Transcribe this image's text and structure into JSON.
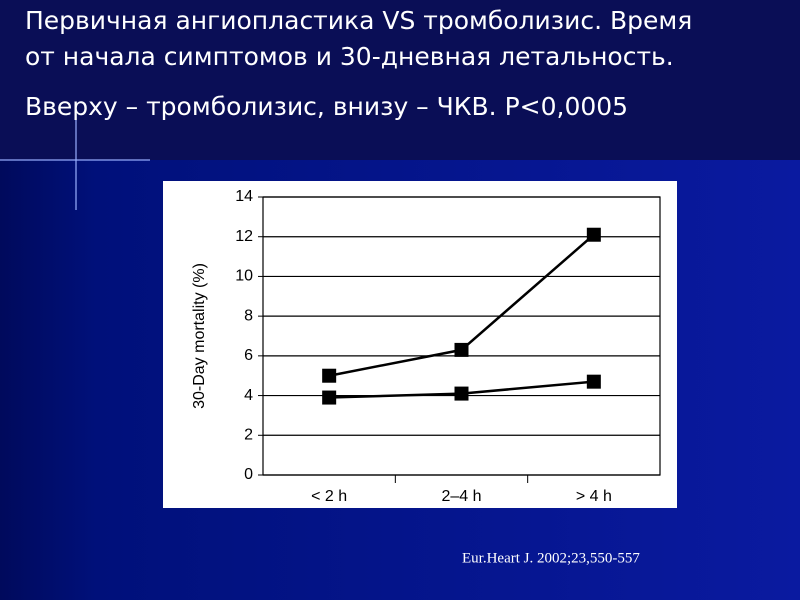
{
  "slide": {
    "heading": [
      "Первичная ангиопластика VS тромболизис. Время",
      "от начала симптомов и 30-дневная летальность.",
      "Вверху – тромболизис, внизу – ЧКВ. Р<0,0005"
    ],
    "source": "Eur.Heart J. 2002;23,550-557"
  },
  "chart_data": {
    "type": "line",
    "y_label": "30-Day mortality (%)",
    "categories": [
      "< 2 h",
      "2–4 h",
      "> 4 h"
    ],
    "series": [
      {
        "color": "#000000",
        "values": [
          5.0,
          6.3,
          12.1
        ]
      },
      {
        "color": "#000000",
        "values": [
          3.9,
          4.1,
          4.7
        ]
      }
    ],
    "ylim": [
      0,
      14
    ],
    "yticks": [
      0,
      2,
      4,
      6,
      8,
      10,
      12,
      14
    ],
    "grid": true
  }
}
